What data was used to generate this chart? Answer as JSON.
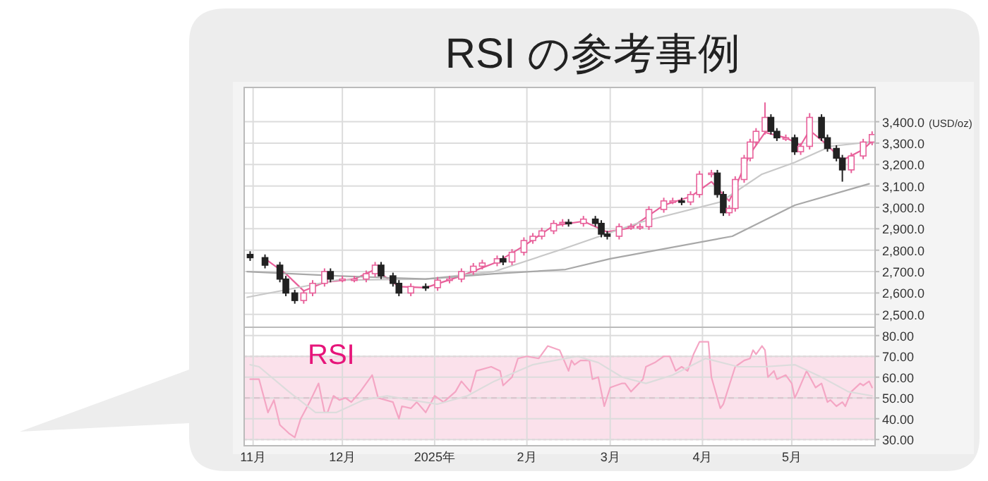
{
  "chart_data": [
    {
      "type": "candlestick",
      "title": "RSI の参考事例",
      "ylabel": "(USD/oz)",
      "grid": true,
      "tick_labels": "y",
      "xlim": [
        "2024-10-29",
        "2025-05-29"
      ],
      "xticks": [
        {
          "value": "2024-11-01",
          "label": null
        },
        {
          "value": "2024-12-01",
          "label": null
        },
        {
          "value": "2025-01-01",
          "label": null
        },
        {
          "value": "2025-02-01",
          "label": null
        },
        {
          "value": "2025-03-01",
          "label": null
        },
        {
          "value": "2025-04-01",
          "label": null
        },
        {
          "value": "2025-05-01",
          "label": null
        }
      ],
      "ylim": [
        2440,
        3560
      ],
      "yticks": [
        {
          "value": 2500,
          "label": "2,500.0"
        },
        {
          "value": 2600,
          "label": "2,600.0"
        },
        {
          "value": 2700,
          "label": "2,700.0"
        },
        {
          "value": 2800,
          "label": "2,800.0"
        },
        {
          "value": 2900,
          "label": "2,900.0"
        },
        {
          "value": 3000,
          "label": "3,000.0"
        },
        {
          "value": 3100,
          "label": "3,100.0"
        },
        {
          "value": 3200,
          "label": "3,200.0"
        },
        {
          "value": 3300,
          "label": "3,300.0"
        },
        {
          "value": 3400,
          "label": "3,400.0"
        }
      ],
      "x": [
        "2024-10-31",
        "2024-11-05",
        "2024-11-10",
        "2024-11-12",
        "2024-11-15",
        "2024-11-18",
        "2024-11-21",
        "2024-11-25",
        "2024-11-27",
        "2024-12-01",
        "2024-12-05",
        "2024-12-09",
        "2024-12-12",
        "2024-12-14",
        "2024-12-18",
        "2024-12-20",
        "2024-12-24",
        "2024-12-29",
        "2025-01-02",
        "2025-01-06",
        "2025-01-10",
        "2025-01-14",
        "2025-01-17",
        "2025-01-22",
        "2025-01-24",
        "2025-01-27",
        "2025-01-31",
        "2025-02-03",
        "2025-02-06",
        "2025-02-10",
        "2025-02-13",
        "2025-02-15",
        "2025-02-20",
        "2025-02-24",
        "2025-02-26",
        "2025-02-28",
        "2025-03-04",
        "2025-03-08",
        "2025-03-11",
        "2025-03-14",
        "2025-03-19",
        "2025-03-22",
        "2025-03-25",
        "2025-03-28",
        "2025-03-31",
        "2025-04-04",
        "2025-04-06",
        "2025-04-08",
        "2025-04-10",
        "2025-04-12",
        "2025-04-15",
        "2025-04-17",
        "2025-04-19",
        "2025-04-22",
        "2025-04-24",
        "2025-04-26",
        "2025-04-29",
        "2025-05-02",
        "2025-05-04",
        "2025-05-07",
        "2025-05-11",
        "2025-05-13",
        "2025-05-16",
        "2025-05-18",
        "2025-05-21",
        "2025-05-25",
        "2025-05-28"
      ],
      "ohlc": [
        [
          2780,
          2795,
          2750,
          2765
        ],
        [
          2765,
          2780,
          2715,
          2730
        ],
        [
          2730,
          2745,
          2650,
          2665
        ],
        [
          2665,
          2680,
          2585,
          2600
        ],
        [
          2600,
          2615,
          2550,
          2565
        ],
        [
          2565,
          2615,
          2550,
          2600
        ],
        [
          2600,
          2660,
          2585,
          2645
        ],
        [
          2645,
          2715,
          2630,
          2700
        ],
        [
          2700,
          2715,
          2650,
          2665
        ],
        [
          2665,
          2680,
          2650,
          2665
        ],
        [
          2665,
          2680,
          2650,
          2665
        ],
        [
          2665,
          2705,
          2650,
          2690
        ],
        [
          2690,
          2745,
          2675,
          2730
        ],
        [
          2730,
          2745,
          2665,
          2680
        ],
        [
          2680,
          2695,
          2630,
          2645
        ],
        [
          2645,
          2660,
          2585,
          2600
        ],
        [
          2600,
          2645,
          2585,
          2630
        ],
        [
          2630,
          2645,
          2610,
          2625
        ],
        [
          2625,
          2675,
          2610,
          2660
        ],
        [
          2660,
          2680,
          2645,
          2665
        ],
        [
          2665,
          2715,
          2650,
          2700
        ],
        [
          2700,
          2740,
          2685,
          2725
        ],
        [
          2725,
          2755,
          2710,
          2740
        ],
        [
          2740,
          2775,
          2725,
          2760
        ],
        [
          2760,
          2775,
          2730,
          2745
        ],
        [
          2745,
          2805,
          2730,
          2790
        ],
        [
          2790,
          2860,
          2775,
          2845
        ],
        [
          2845,
          2880,
          2830,
          2865
        ],
        [
          2865,
          2905,
          2850,
          2890
        ],
        [
          2890,
          2940,
          2875,
          2925
        ],
        [
          2925,
          2945,
          2910,
          2930
        ],
        [
          2930,
          2945,
          2910,
          2925
        ],
        [
          2925,
          2960,
          2910,
          2945
        ],
        [
          2945,
          2960,
          2910,
          2925
        ],
        [
          2925,
          2940,
          2860,
          2875
        ],
        [
          2875,
          2890,
          2850,
          2865
        ],
        [
          2865,
          2925,
          2850,
          2910
        ],
        [
          2910,
          2925,
          2895,
          2910
        ],
        [
          2910,
          2925,
          2895,
          2910
        ],
        [
          2910,
          3005,
          2895,
          2990
        ],
        [
          2990,
          3045,
          2975,
          3030
        ],
        [
          3030,
          3045,
          3015,
          3030
        ],
        [
          3030,
          3045,
          3010,
          3025
        ],
        [
          3025,
          3075,
          3010,
          3060
        ],
        [
          3060,
          3170,
          3045,
          3155
        ],
        [
          3155,
          3175,
          3140,
          3160
        ],
        [
          3160,
          3175,
          3045,
          3060
        ],
        [
          3060,
          3075,
          2960,
          2975
        ],
        [
          2975,
          3010,
          2960,
          2995
        ],
        [
          2995,
          3145,
          2980,
          3130
        ],
        [
          3130,
          3245,
          3115,
          3230
        ],
        [
          3230,
          3320,
          3215,
          3305
        ],
        [
          3305,
          3370,
          3290,
          3355
        ],
        [
          3355,
          3490,
          3340,
          3420
        ],
        [
          3420,
          3435,
          3340,
          3355
        ],
        [
          3355,
          3370,
          3310,
          3325
        ],
        [
          3325,
          3340,
          3310,
          3325
        ],
        [
          3325,
          3340,
          3245,
          3260
        ],
        [
          3260,
          3300,
          3245,
          3285
        ],
        [
          3285,
          3440,
          3270,
          3420
        ],
        [
          3420,
          3435,
          3310,
          3325
        ],
        [
          3325,
          3340,
          3260,
          3275
        ],
        [
          3275,
          3290,
          3215,
          3230
        ],
        [
          3230,
          3245,
          3120,
          3175
        ],
        [
          3175,
          3255,
          3160,
          3240
        ],
        [
          3240,
          3320,
          3225,
          3305
        ],
        [
          3305,
          3355,
          3290,
          3340
        ]
      ],
      "series": [
        {
          "type": "line",
          "color": "#e8609a",
          "x": [
            "2024-11-05",
            "2024-11-12",
            "2024-11-18",
            "2024-11-25",
            "2024-12-05",
            "2024-12-12",
            "2024-12-20",
            "2024-12-29",
            "2025-01-10",
            "2025-01-22",
            "2025-01-31",
            "2025-02-10",
            "2025-02-20",
            "2025-02-28",
            "2025-03-08",
            "2025-03-19",
            "2025-03-28",
            "2025-04-04",
            "2025-04-10",
            "2025-04-17",
            "2025-04-22",
            "2025-04-29",
            "2025-05-04",
            "2025-05-07",
            "2025-05-13",
            "2025-05-18",
            "2025-05-25",
            "2025-05-28"
          ],
          "values": [
            2760,
            2690,
            2610,
            2650,
            2665,
            2710,
            2630,
            2625,
            2680,
            2745,
            2820,
            2915,
            2935,
            2885,
            2905,
            3010,
            3050,
            3120,
            3030,
            3250,
            3350,
            3325,
            3290,
            3360,
            3290,
            3220,
            3270,
            3310
          ]
        },
        {
          "type": "line",
          "color": "#c8c8c8",
          "x": [
            "2024-10-30",
            "2024-11-29",
            "2024-12-29",
            "2025-01-21",
            "2025-02-14",
            "2025-03-11",
            "2025-04-07",
            "2025-04-21",
            "2025-05-02",
            "2025-05-14",
            "2025-05-27"
          ],
          "values": [
            2580,
            2660,
            2665,
            2700,
            2810,
            2930,
            3025,
            3155,
            3210,
            3285,
            3305
          ]
        },
        {
          "type": "line",
          "color": "#a8a8a8",
          "x": [
            "2024-10-30",
            "2024-11-29",
            "2024-12-29",
            "2025-01-21",
            "2025-02-14",
            "2025-03-01",
            "2025-04-11",
            "2025-05-02",
            "2025-05-27"
          ],
          "values": [
            2700,
            2680,
            2665,
            2690,
            2710,
            2760,
            2865,
            3010,
            3110
          ]
        }
      ]
    },
    {
      "type": "line",
      "grid": true,
      "legend": "top left",
      "tick_labels": true,
      "xlim": [
        "2024-10-29",
        "2025-05-29"
      ],
      "xticks": [
        {
          "value": "2024-11-01",
          "label": "11月"
        },
        {
          "value": "2024-12-01",
          "label": "12月"
        },
        {
          "value": "2025-01-01",
          "label": "2025年"
        },
        {
          "value": "2025-02-01",
          "label": "2月"
        },
        {
          "value": "2025-03-01",
          "label": "3月"
        },
        {
          "value": "2025-04-01",
          "label": "4月"
        },
        {
          "value": "2025-05-01",
          "label": "5月"
        }
      ],
      "ylim": [
        27,
        84
      ],
      "yticks": [
        {
          "value": 30,
          "label": "30.00"
        },
        {
          "value": 40,
          "label": "40.00"
        },
        {
          "value": 50,
          "label": "50.00"
        },
        {
          "value": 60,
          "label": "60.00"
        },
        {
          "value": 70,
          "label": "70.00"
        },
        {
          "value": 80,
          "label": "80.00"
        }
      ],
      "bands": [
        {
          "axis": "y",
          "from": 30,
          "to": 70,
          "color": "#fbe1eb"
        }
      ],
      "ref_lines": [
        {
          "axis": "y",
          "value": 50,
          "line_style": "dashed",
          "color": "#d9c3cc"
        }
      ],
      "series": [
        {
          "name": "RSI",
          "color": "#f4a6c4",
          "x": [
            "2024-10-31",
            "2024-11-03",
            "2024-11-06",
            "2024-11-08",
            "2024-11-10",
            "2024-11-13",
            "2024-11-15",
            "2024-11-17",
            "2024-11-20",
            "2024-11-23",
            "2024-11-25",
            "2024-11-26",
            "2024-11-28",
            "2024-11-30",
            "2024-12-02",
            "2024-12-04",
            "2024-12-07",
            "2024-12-11",
            "2024-12-13",
            "2024-12-18",
            "2024-12-20",
            "2024-12-21",
            "2024-12-24",
            "2024-12-26",
            "2024-12-29",
            "2025-01-01",
            "2025-01-04",
            "2025-01-08",
            "2025-01-10",
            "2025-01-13",
            "2025-01-15",
            "2025-01-20",
            "2025-01-23",
            "2025-01-24",
            "2025-01-27",
            "2025-01-29",
            "2025-02-01",
            "2025-02-05",
            "2025-02-08",
            "2025-02-12",
            "2025-02-15",
            "2025-02-16",
            "2025-02-17",
            "2025-02-19",
            "2025-02-22",
            "2025-02-23",
            "2025-02-25",
            "2025-02-27",
            "2025-03-01",
            "2025-03-05",
            "2025-03-06",
            "2025-03-08",
            "2025-03-12",
            "2025-03-13",
            "2025-03-16",
            "2025-03-19",
            "2025-03-21",
            "2025-03-23",
            "2025-03-25",
            "2025-03-27",
            "2025-03-29",
            "2025-03-31",
            "2025-04-03",
            "2025-04-04",
            "2025-04-07",
            "2025-04-08",
            "2025-04-10",
            "2025-04-12",
            "2025-04-15",
            "2025-04-17",
            "2025-04-18",
            "2025-04-19",
            "2025-04-21",
            "2025-04-22",
            "2025-04-23",
            "2025-04-25",
            "2025-04-26",
            "2025-04-29",
            "2025-05-01",
            "2025-05-02",
            "2025-05-03",
            "2025-05-06",
            "2025-05-09",
            "2025-05-11",
            "2025-05-13",
            "2025-05-14",
            "2025-05-16",
            "2025-05-18",
            "2025-05-19",
            "2025-05-21",
            "2025-05-24",
            "2025-05-25",
            "2025-05-27",
            "2025-05-28"
          ],
          "values": [
            59,
            59,
            43,
            49,
            37,
            33,
            31,
            40,
            48,
            57,
            43,
            43,
            51,
            49,
            50,
            48,
            53,
            61,
            50,
            48,
            40,
            46,
            45,
            48,
            43,
            51,
            48,
            53,
            58,
            53,
            63,
            65,
            63,
            56,
            60,
            69,
            70,
            69,
            75,
            73,
            63,
            68,
            66,
            68,
            68,
            59,
            60,
            46,
            55,
            57,
            57,
            53,
            59,
            65,
            67,
            70,
            70,
            63,
            65,
            63,
            71,
            77,
            77,
            60,
            45,
            47,
            56,
            65,
            68,
            69,
            73,
            71,
            75,
            73,
            60,
            63,
            59,
            61,
            57,
            50,
            53,
            63,
            55,
            57,
            48,
            49,
            46,
            48,
            46,
            53,
            57,
            56,
            58,
            55
          ]
        },
        {
          "color": "#dcdcdc",
          "x": [
            "2024-10-31",
            "2024-11-03",
            "2024-11-13",
            "2024-11-22",
            "2024-11-29",
            "2024-12-08",
            "2024-12-16",
            "2024-12-24",
            "2025-01-02",
            "2025-01-12",
            "2025-01-21",
            "2025-02-03",
            "2025-02-14",
            "2025-02-18",
            "2025-02-25",
            "2025-03-05",
            "2025-03-13",
            "2025-03-22",
            "2025-04-02",
            "2025-04-13",
            "2025-04-22",
            "2025-05-02",
            "2025-05-11",
            "2025-05-20",
            "2025-05-28"
          ],
          "values": [
            66,
            65,
            53,
            43,
            43,
            49,
            51,
            49,
            47,
            51,
            58,
            66,
            69,
            70,
            67,
            60,
            57,
            61,
            69,
            65,
            65,
            66,
            60,
            53,
            51
          ]
        }
      ]
    }
  ]
}
